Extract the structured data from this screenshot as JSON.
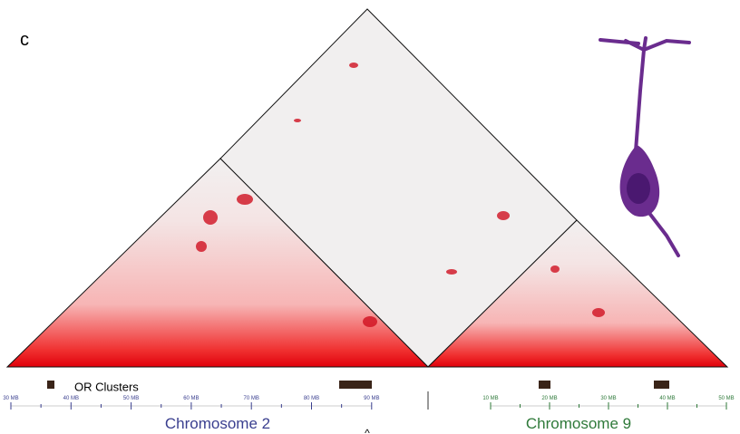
{
  "panel_label": "c",
  "track_label": "OR Clusters",
  "chromosome_2": {
    "name": "Chromosome 2",
    "ticks": [
      "30 MB",
      "40 MB",
      "50 MB",
      "60 MB",
      "70 MB",
      "80 MB",
      "90 MB"
    ]
  },
  "chromosome_9": {
    "name": "Chromosome 9",
    "ticks": [
      "10 MB",
      "20 MB",
      "30 MB",
      "40 MB",
      "50 MB"
    ]
  },
  "footer_mark": "^"
}
